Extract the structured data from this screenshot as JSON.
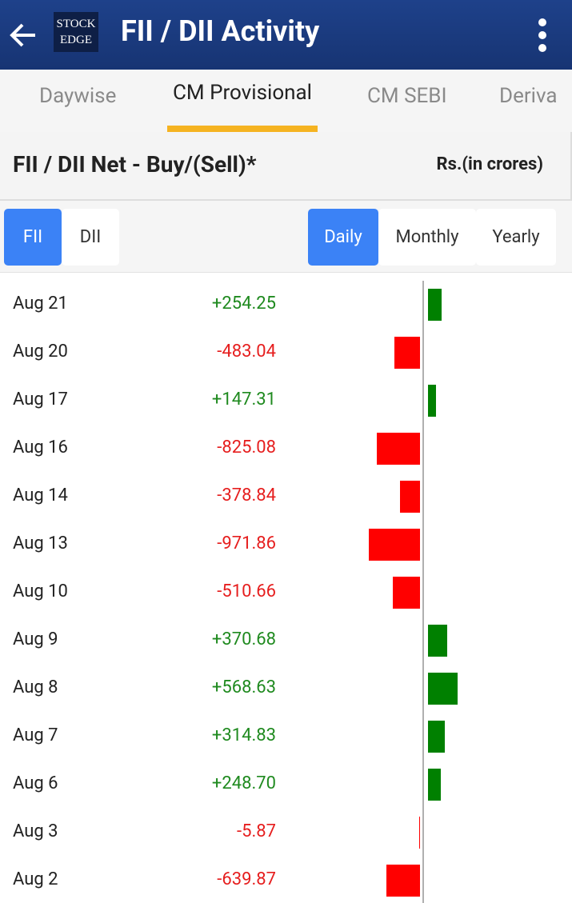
{
  "header": {
    "title": "FII / DII Activity",
    "logo": [
      "STOCK",
      "EDGE"
    ]
  },
  "tabs": {
    "items": [
      "Daywise",
      "CM Provisional",
      "CM SEBI",
      "Deriva"
    ],
    "selected": 1
  },
  "section": {
    "title": "FII / DII Net - Buy/(Sell)*",
    "unit": "Rs.(in crores)"
  },
  "toggles": {
    "entity": [
      "FII",
      "DII"
    ],
    "entity_selected": 0,
    "period": [
      "Daily",
      "Monthly",
      "Yearly"
    ],
    "period_selected": 0
  },
  "list": {
    "positive_color": "#008000",
    "negative_color": "#ff0000",
    "rows": [
      {
        "date": "Aug 21",
        "value": 254.25,
        "value_label": "+254.25"
      },
      {
        "date": "Aug 20",
        "value": -483.04,
        "value_label": "-483.04"
      },
      {
        "date": "Aug 17",
        "value": 147.31,
        "value_label": "+147.31"
      },
      {
        "date": "Aug 16",
        "value": -825.08,
        "value_label": "-825.08"
      },
      {
        "date": "Aug 14",
        "value": -378.84,
        "value_label": "-378.84"
      },
      {
        "date": "Aug 13",
        "value": -971.86,
        "value_label": "-971.86"
      },
      {
        "date": "Aug 10",
        "value": -510.66,
        "value_label": "-510.66"
      },
      {
        "date": "Aug 9",
        "value": 370.68,
        "value_label": "+370.68"
      },
      {
        "date": "Aug 8",
        "value": 568.63,
        "value_label": "+568.63"
      },
      {
        "date": "Aug 7",
        "value": 314.83,
        "value_label": "+314.83"
      },
      {
        "date": "Aug 6",
        "value": 248.7,
        "value_label": "+248.70"
      },
      {
        "date": "Aug 3",
        "value": -5.87,
        "value_label": "-5.87"
      },
      {
        "date": "Aug 2",
        "value": -639.87,
        "value_label": "-639.87"
      }
    ]
  }
}
